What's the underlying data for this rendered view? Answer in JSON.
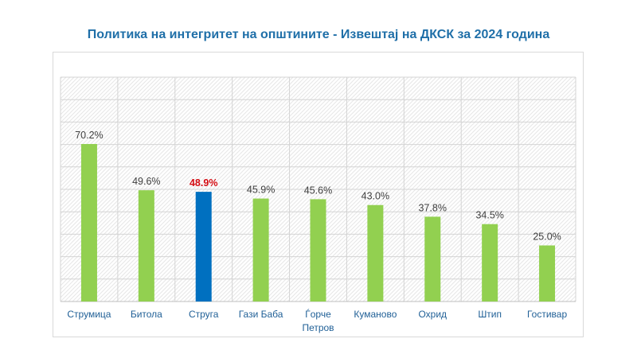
{
  "chart_data": {
    "type": "bar",
    "title": "Политика на интегритет на општините - Извештај на ДКСК за 2024 година",
    "categories": [
      "Струмица",
      "Битола",
      "Струга",
      "Гази Баба",
      "Ѓорче Петров",
      "Куманово",
      "Охрид",
      "Штип",
      "Гостивар"
    ],
    "category_lines": [
      [
        "Струмица"
      ],
      [
        "Битола"
      ],
      [
        "Струга"
      ],
      [
        "Гази Баба"
      ],
      [
        "Ѓорче",
        "Петров"
      ],
      [
        "Куманово"
      ],
      [
        "Охрид"
      ],
      [
        "Штип"
      ],
      [
        "Гостивар"
      ]
    ],
    "values": [
      70.2,
      49.6,
      48.9,
      45.9,
      45.6,
      43.0,
      37.8,
      34.5,
      25.0
    ],
    "data_labels": [
      "70.2%",
      "49.6%",
      "48.9%",
      "45.9%",
      "45.6%",
      "43.0%",
      "37.8%",
      "34.5%",
      "25.0%"
    ],
    "highlight_index": 2,
    "ylim": [
      0,
      100
    ],
    "grid": true,
    "legend": "none",
    "xlabel": "",
    "ylabel": "",
    "colors": {
      "bar": "#92d050",
      "highlight": "#0070c0",
      "highlight_label": "#d40e14",
      "title": "#1f6fa8",
      "tick": "#1f5f96"
    }
  }
}
